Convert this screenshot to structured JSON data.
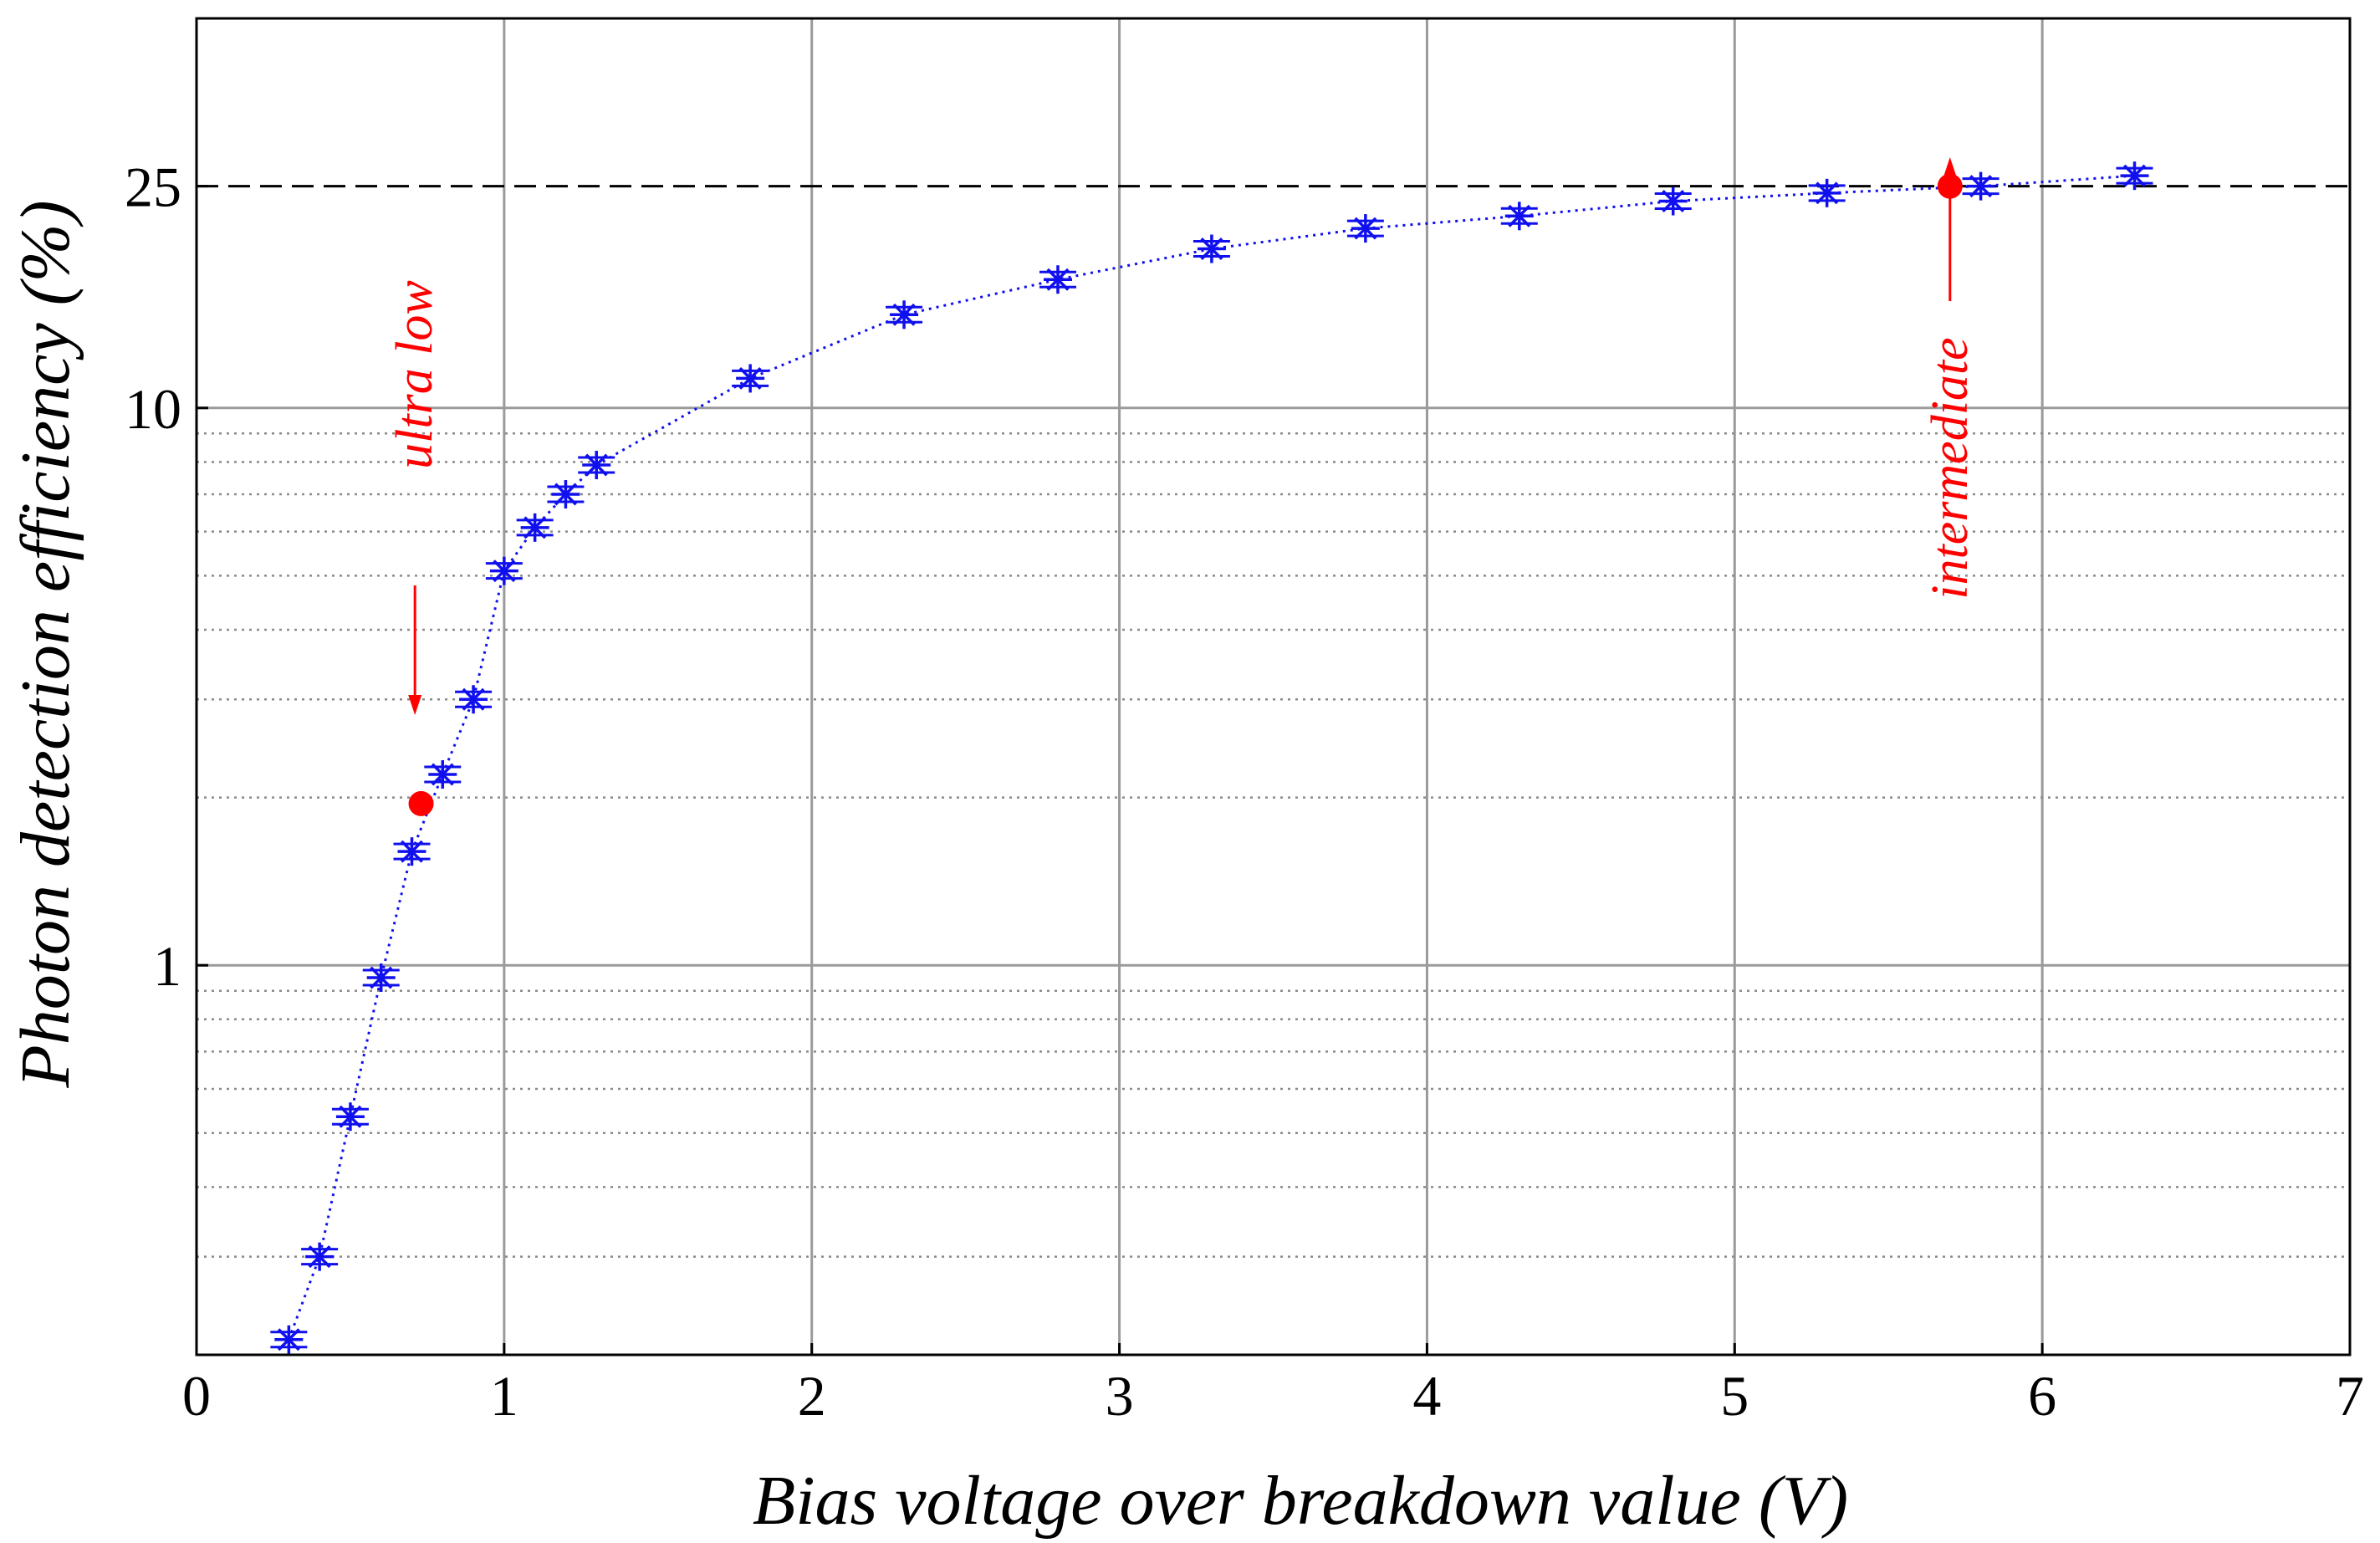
{
  "chart_data": {
    "type": "scatter",
    "title": "",
    "xlabel": "Bias voltage over breakdown value (V)",
    "ylabel": "Photon detection efficiency (%)",
    "xlim": [
      0,
      7
    ],
    "ylim": [
      0.2,
      50
    ],
    "yscale": "log",
    "grid": true,
    "minor_grid": "dotted",
    "x_ticks": [
      0,
      1,
      2,
      3,
      4,
      5,
      6,
      7
    ],
    "x_tick_labels": [
      "0",
      "1",
      "2",
      "3",
      "4",
      "5",
      "6",
      "7"
    ],
    "y_ticks": [
      1,
      10,
      25
    ],
    "y_tick_labels": [
      "1",
      "10",
      "25"
    ],
    "reference_line": {
      "y": 25,
      "style": "dashed",
      "color": "#000000"
    },
    "series": [
      {
        "marker": "asterisk",
        "line": "dotted",
        "color": "#1010ee",
        "x": [
          0.3,
          0.4,
          0.5,
          0.6,
          0.7,
          0.8,
          0.9,
          1.0,
          1.1,
          1.2,
          1.3,
          1.8,
          2.3,
          2.8,
          3.3,
          3.8,
          4.3,
          4.8,
          5.3,
          5.8,
          6.3
        ],
        "y": [
          0.213,
          0.3,
          0.535,
          0.95,
          1.6,
          2.2,
          3.0,
          5.1,
          6.1,
          7.0,
          7.9,
          11.3,
          14.7,
          17.0,
          19.3,
          21.0,
          22.1,
          23.5,
          24.3,
          25.0,
          26.1
        ]
      }
    ],
    "highlights": [
      {
        "x": 0.73,
        "y": 1.95,
        "color": "#ff0000",
        "label": "ultra low"
      },
      {
        "x": 5.7,
        "y": 25.0,
        "color": "#ff0000",
        "label": "intermediate"
      }
    ]
  }
}
